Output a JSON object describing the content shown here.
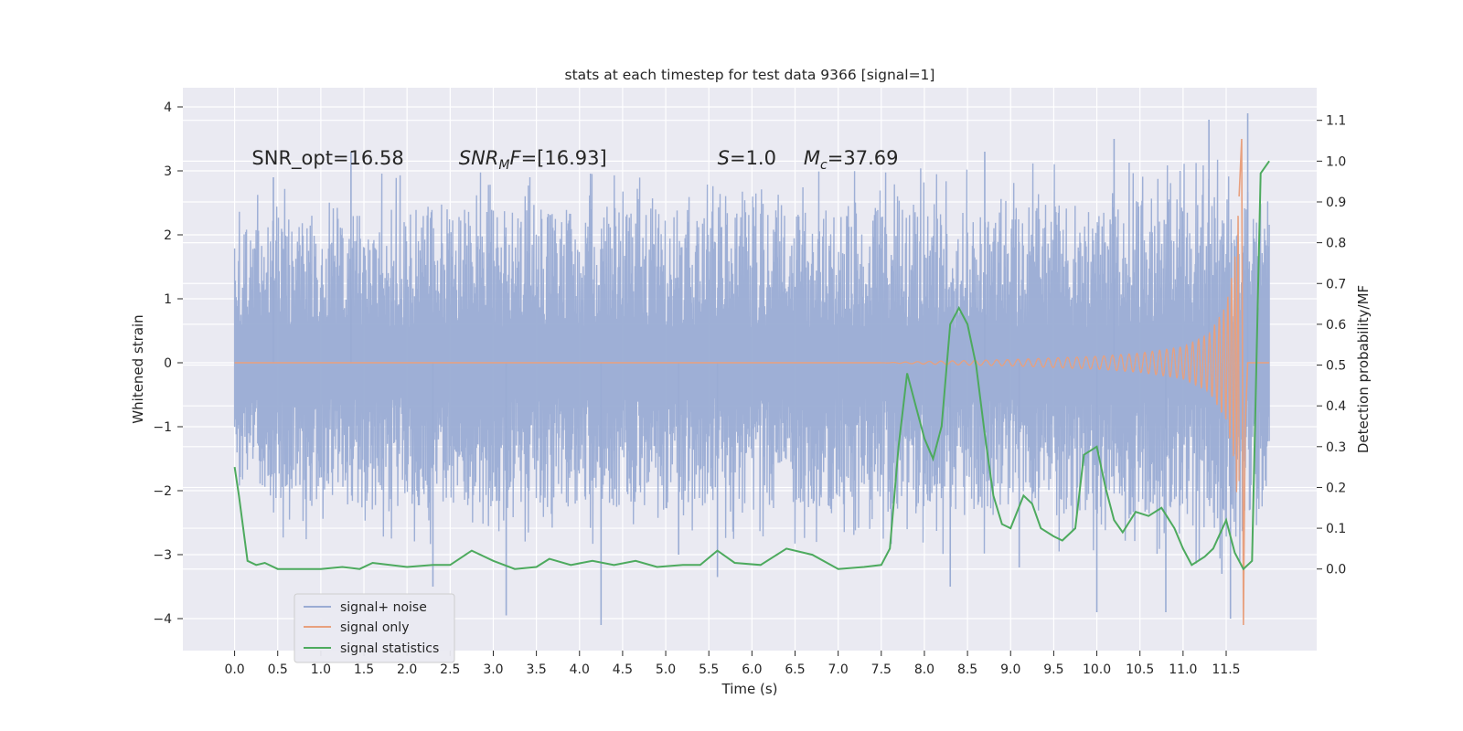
{
  "chart_data": {
    "type": "line",
    "title": "stats at each timestep for test data 9366 [signal=1]",
    "xlabel": "Time (s)",
    "ylabel_left": "Whitened strain",
    "ylabel_right": "Detection probability/MF",
    "xlim": [
      -0.6,
      12.55
    ],
    "ylim_left": [
      -4.5,
      4.3
    ],
    "ylim_right": [
      -0.2,
      1.18
    ],
    "x_ticks": [
      0.0,
      0.5,
      1.0,
      1.5,
      2.0,
      2.5,
      3.0,
      3.5,
      4.0,
      4.5,
      5.0,
      5.5,
      6.0,
      6.5,
      7.0,
      7.5,
      8.0,
      8.5,
      9.0,
      9.5,
      10.0,
      10.5,
      11.0,
      11.5
    ],
    "x_tick_labels": [
      "0.0",
      "0.5",
      "1.0",
      "1.5",
      "2.0",
      "2.5",
      "3.0",
      "3.5",
      "4.0",
      "4.5",
      "5.0",
      "5.5",
      "6.0",
      "6.5",
      "7.0",
      "7.5",
      "8.0",
      "8.5",
      "9.0",
      "9.5",
      "10.0",
      "10.5",
      "11.0",
      "11.5"
    ],
    "y_ticks_left": [
      -4,
      -3,
      -2,
      -1,
      0,
      1,
      2,
      3,
      4
    ],
    "y_tick_labels_left": [
      "−4",
      "−3",
      "−2",
      "−1",
      "0",
      "1",
      "2",
      "3",
      "4"
    ],
    "y_ticks_right": [
      0.0,
      0.1,
      0.2,
      0.3,
      0.4,
      0.5,
      0.6,
      0.7,
      0.8,
      0.9,
      1.0,
      1.1
    ],
    "y_tick_labels_right": [
      "0.0",
      "0.1",
      "0.2",
      "0.3",
      "0.4",
      "0.5",
      "0.6",
      "0.7",
      "0.8",
      "0.9",
      "1.0",
      "1.1"
    ],
    "grid": true,
    "legend_position": "lower-left",
    "annotations": [
      {
        "text": "SNR_opt=16.58",
        "x": 0.2,
        "y": 3.1
      },
      {
        "text": "SNR_MF=[16.93]",
        "x": 2.6,
        "y": 3.1
      },
      {
        "text": "S=1.0",
        "x": 5.6,
        "y": 3.1
      },
      {
        "text": "M_c=37.69",
        "x": 6.6,
        "y": 3.1
      }
    ],
    "series": [
      {
        "name": "signal+ noise",
        "axis": "left",
        "color": "#9aacd4",
        "description": "whitened strain noise, approx. ±1.3 band with spikes to ±4",
        "x_range": [
          0.0,
          12.0
        ],
        "envelope_upper": [
          [
            0.0,
            2.0
          ],
          [
            0.5,
            2.3
          ],
          [
            1.0,
            2.3
          ],
          [
            2.0,
            2.4
          ],
          [
            3.0,
            2.4
          ],
          [
            4.0,
            2.4
          ],
          [
            5.0,
            2.4
          ],
          [
            6.0,
            2.4
          ],
          [
            7.0,
            2.4
          ],
          [
            8.0,
            2.5
          ],
          [
            9.0,
            2.5
          ],
          [
            10.0,
            2.5
          ],
          [
            11.0,
            2.6
          ],
          [
            11.5,
            2.8
          ],
          [
            12.0,
            2.2
          ]
        ],
        "envelope_lower": [
          [
            0.0,
            -1.5
          ],
          [
            0.5,
            -2.2
          ],
          [
            1.0,
            -2.3
          ],
          [
            2.0,
            -2.3
          ],
          [
            3.0,
            -2.3
          ],
          [
            4.0,
            -2.3
          ],
          [
            5.0,
            -2.3
          ],
          [
            6.0,
            -2.3
          ],
          [
            7.0,
            -2.3
          ],
          [
            8.0,
            -2.4
          ],
          [
            9.0,
            -2.4
          ],
          [
            10.0,
            -2.4
          ],
          [
            11.0,
            -2.5
          ],
          [
            11.5,
            -2.7
          ],
          [
            12.0,
            -2.2
          ]
        ],
        "peaks": [
          [
            0.45,
            2.9
          ],
          [
            1.35,
            3.3
          ],
          [
            2.3,
            -3.5
          ],
          [
            3.15,
            -3.95
          ],
          [
            4.25,
            -4.1
          ],
          [
            5.15,
            -3.0
          ],
          [
            5.6,
            -3.35
          ],
          [
            8.3,
            -3.5
          ],
          [
            8.7,
            3.3
          ],
          [
            9.1,
            -3.2
          ],
          [
            10.0,
            -3.9
          ],
          [
            10.2,
            3.5
          ],
          [
            10.8,
            -3.9
          ],
          [
            11.3,
            3.8
          ],
          [
            11.45,
            -3.3
          ],
          [
            11.55,
            -4.0
          ],
          [
            11.75,
            3.9
          ]
        ]
      },
      {
        "name": "signal only",
        "axis": "left",
        "color": "#e8a07e",
        "description": "chirp waveform, flat until ~7.5 s then growing oscillation with merger near 11.7 s",
        "points": [
          [
            0.0,
            0.0
          ],
          [
            7.5,
            0.0
          ],
          [
            8.0,
            0.02
          ],
          [
            9.0,
            0.05
          ],
          [
            10.0,
            0.1
          ],
          [
            10.5,
            0.15
          ],
          [
            11.0,
            0.25
          ],
          [
            11.3,
            0.45
          ],
          [
            11.5,
            0.9
          ],
          [
            11.6,
            1.6
          ],
          [
            11.65,
            2.6
          ],
          [
            11.68,
            3.5
          ],
          [
            11.7,
            -4.1
          ],
          [
            11.72,
            -1.0
          ],
          [
            11.75,
            0.0
          ],
          [
            12.0,
            0.0
          ]
        ]
      },
      {
        "name": "signal statistics",
        "axis": "right",
        "color": "#4daa5e",
        "points": [
          [
            0.0,
            0.25
          ],
          [
            0.05,
            0.18
          ],
          [
            0.1,
            0.1
          ],
          [
            0.15,
            0.02
          ],
          [
            0.25,
            0.01
          ],
          [
            0.35,
            0.015
          ],
          [
            0.5,
            0.0
          ],
          [
            0.75,
            0.0
          ],
          [
            1.0,
            0.0
          ],
          [
            1.25,
            0.005
          ],
          [
            1.45,
            0.0
          ],
          [
            1.6,
            0.015
          ],
          [
            1.8,
            0.01
          ],
          [
            2.0,
            0.005
          ],
          [
            2.3,
            0.01
          ],
          [
            2.5,
            0.01
          ],
          [
            2.75,
            0.045
          ],
          [
            3.0,
            0.02
          ],
          [
            3.25,
            0.0
          ],
          [
            3.5,
            0.005
          ],
          [
            3.65,
            0.025
          ],
          [
            3.9,
            0.01
          ],
          [
            4.15,
            0.02
          ],
          [
            4.4,
            0.01
          ],
          [
            4.65,
            0.02
          ],
          [
            4.9,
            0.005
          ],
          [
            5.2,
            0.01
          ],
          [
            5.4,
            0.01
          ],
          [
            5.6,
            0.045
          ],
          [
            5.8,
            0.015
          ],
          [
            6.1,
            0.01
          ],
          [
            6.4,
            0.05
          ],
          [
            6.7,
            0.035
          ],
          [
            7.0,
            0.0
          ],
          [
            7.3,
            0.005
          ],
          [
            7.5,
            0.01
          ],
          [
            7.6,
            0.05
          ],
          [
            7.7,
            0.3
          ],
          [
            7.8,
            0.48
          ],
          [
            7.9,
            0.4
          ],
          [
            8.0,
            0.32
          ],
          [
            8.1,
            0.27
          ],
          [
            8.2,
            0.35
          ],
          [
            8.3,
            0.6
          ],
          [
            8.4,
            0.64
          ],
          [
            8.5,
            0.6
          ],
          [
            8.6,
            0.5
          ],
          [
            8.7,
            0.33
          ],
          [
            8.8,
            0.18
          ],
          [
            8.9,
            0.11
          ],
          [
            9.0,
            0.1
          ],
          [
            9.15,
            0.18
          ],
          [
            9.25,
            0.16
          ],
          [
            9.35,
            0.1
          ],
          [
            9.5,
            0.08
          ],
          [
            9.6,
            0.07
          ],
          [
            9.75,
            0.1
          ],
          [
            9.85,
            0.28
          ],
          [
            10.0,
            0.3
          ],
          [
            10.1,
            0.2
          ],
          [
            10.2,
            0.12
          ],
          [
            10.3,
            0.09
          ],
          [
            10.45,
            0.14
          ],
          [
            10.6,
            0.13
          ],
          [
            10.75,
            0.15
          ],
          [
            10.9,
            0.1
          ],
          [
            11.0,
            0.05
          ],
          [
            11.1,
            0.01
          ],
          [
            11.25,
            0.03
          ],
          [
            11.35,
            0.05
          ],
          [
            11.5,
            0.12
          ],
          [
            11.6,
            0.04
          ],
          [
            11.7,
            0.0
          ],
          [
            11.8,
            0.02
          ],
          [
            11.9,
            0.97
          ],
          [
            12.0,
            1.0
          ]
        ]
      }
    ]
  }
}
